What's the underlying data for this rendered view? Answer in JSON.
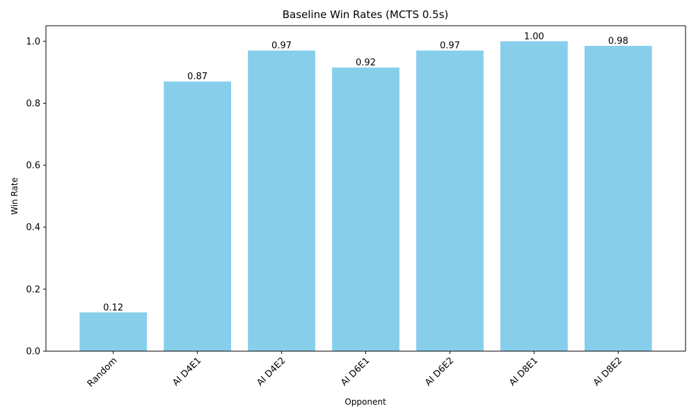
{
  "chart_data": {
    "type": "bar",
    "title": "Baseline Win Rates (MCTS 0.5s)",
    "xlabel": "Opponent",
    "ylabel": "Win Rate",
    "categories": [
      "Random",
      "AI D4E1",
      "AI D4E2",
      "AI D6E1",
      "AI D6E2",
      "AI D8E1",
      "AI D8E2"
    ],
    "values": [
      0.125,
      0.87,
      0.97,
      0.915,
      0.97,
      1.0,
      0.985
    ],
    "value_labels": [
      "0.12",
      "0.87",
      "0.97",
      "0.92",
      "0.97",
      "1.00",
      "0.98"
    ],
    "ylim": [
      0,
      1.05
    ],
    "yticks": [
      0.0,
      0.2,
      0.4,
      0.6,
      0.8,
      1.0
    ],
    "ytick_labels": [
      "0.0",
      "0.2",
      "0.4",
      "0.6",
      "0.8",
      "1.0"
    ],
    "grid": false,
    "legend": "none",
    "bar_color": "#87CEEB",
    "axis_color": "#000000"
  }
}
